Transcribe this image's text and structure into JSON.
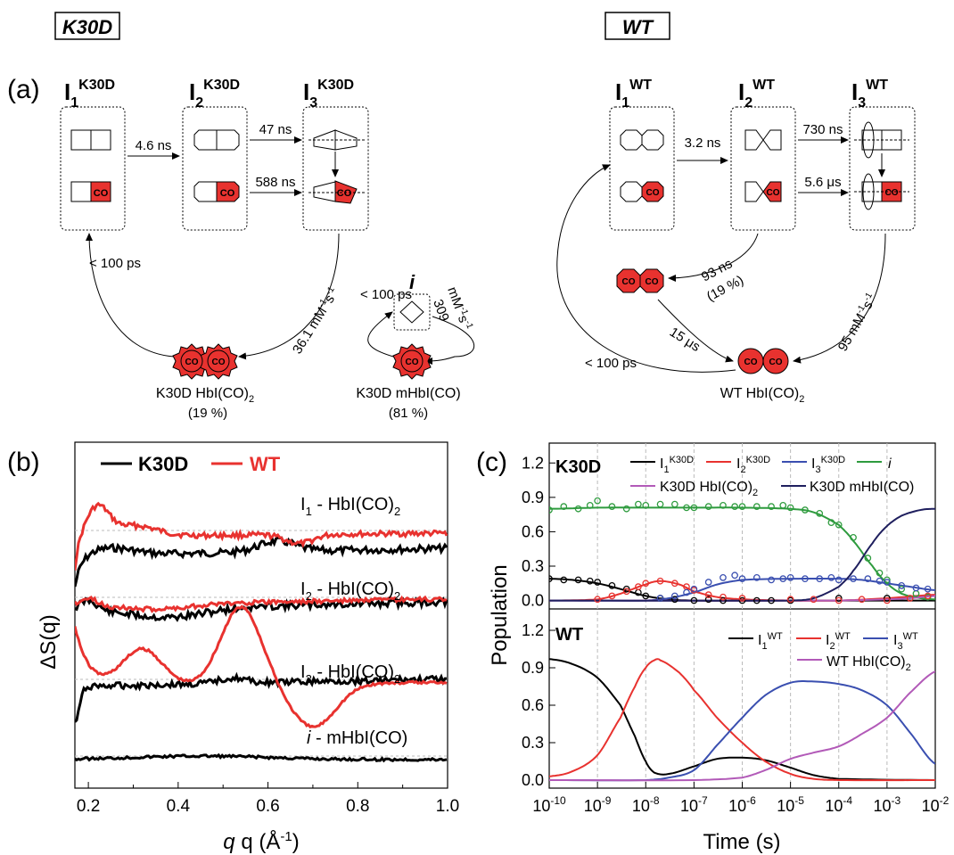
{
  "panel_a": {
    "label": "(a)",
    "k30d": {
      "title": "K30D",
      "states": [
        {
          "base": "I",
          "sub": "1",
          "sup": "K30D"
        },
        {
          "base": "I",
          "sub": "2",
          "sup": "K30D"
        },
        {
          "base": "I",
          "sub": "3",
          "sup": "K30D"
        }
      ],
      "i_label": "i",
      "rates": {
        "r12": "4.6 ns",
        "r23_top": "47 ns",
        "r23_bottom": "588 ns",
        "back": "< 100 ps",
        "bimol": "36.1 mM",
        "bimol_sup": "-1",
        "bimol_s": "s",
        "i_back": "< 100 ps",
        "i_bimol_num": "309",
        "i_bimol_unit": "mM",
        "i_bimol_sup": "-1",
        "i_bimol_s": "s"
      },
      "co_text": "CO",
      "product_dimer": {
        "name": "K30D HbI(CO)",
        "sub": "2",
        "pct": "(19 %)"
      },
      "product_mono": {
        "name": "K30D mHbI(CO)",
        "pct": "(81 %)"
      }
    },
    "wt": {
      "title": "WT",
      "states": [
        {
          "base": "I",
          "sub": "1",
          "sup": "WT"
        },
        {
          "base": "I",
          "sub": "2",
          "sup": "WT"
        },
        {
          "base": "I",
          "sub": "3",
          "sup": "WT"
        }
      ],
      "rates": {
        "r12": "3.2 ns",
        "r23_top": "730 ns",
        "r23_bottom": "5.6 μs",
        "r_dissoc": "93 ns",
        "r_dissoc_pct": "(19 %)",
        "r_rebind": "15 μs",
        "back": "< 100 ps",
        "bimol": "95 mM",
        "bimol_sup": "-1",
        "bimol_s": "s"
      },
      "co_text": "CO",
      "product": {
        "name": "WT HbI(CO)",
        "sub": "2"
      }
    }
  },
  "panel_b": {
    "label": "(b)",
    "legend": [
      "K30D",
      "WT"
    ],
    "ylabel": "ΔS(q)",
    "xlabel": "q (Å",
    "xlabel_sup": "-1",
    "xlabel_end": ")",
    "xticks": [
      "0.2",
      "0.4",
      "0.6",
      "0.8",
      "1.0"
    ],
    "curve_labels": [
      {
        "pre": "I",
        "sub": "1",
        "post": " - HbI(CO)",
        "sub2": "2"
      },
      {
        "pre": "I",
        "sub": "2",
        "post": " - HbI(CO)",
        "sub2": "2"
      },
      {
        "pre": "I",
        "sub": "3",
        "post": " - HbI(CO)",
        "sub2": "2"
      },
      {
        "pre": "i",
        "sub": "",
        "post": " - mHbI(CO)",
        "sub2": ""
      }
    ]
  },
  "panel_c": {
    "label": "(c)",
    "ylabel": "Population",
    "xlabel": "Time (s)",
    "yticks": [
      "0.0",
      "0.3",
      "0.6",
      "0.9",
      "1.2"
    ],
    "xticks_exp": [
      "-10",
      "-9",
      "-8",
      "-7",
      "-6",
      "-5",
      "-4",
      "-3",
      "-2"
    ],
    "xtick_base": "10",
    "top_title": "K30D",
    "bottom_title": "WT",
    "top_legend": [
      {
        "base": "I",
        "sub": "1",
        "sup": "K30D",
        "color": "#000000"
      },
      {
        "base": "I",
        "sub": "2",
        "sup": "K30D",
        "color": "#e8322f"
      },
      {
        "base": "I",
        "sub": "3",
        "sup": "K30D",
        "color": "#3a4fb0"
      },
      {
        "base": "i",
        "sub": "",
        "sup": "",
        "color": "#2e9b3e"
      },
      {
        "base": "K30D HbI(CO)",
        "sub": "2",
        "sup": "",
        "color": "#b25ab8"
      },
      {
        "base": "K30D mHbI(CO)",
        "sub": "",
        "sup": "",
        "color": "#1f1f5e"
      }
    ],
    "bottom_legend": [
      {
        "base": "I",
        "sub": "1",
        "sup": "WT",
        "color": "#000000"
      },
      {
        "base": "I",
        "sub": "2",
        "sup": "WT",
        "color": "#e8322f"
      },
      {
        "base": "I",
        "sub": "3",
        "sup": "WT",
        "color": "#3a4fb0"
      },
      {
        "base": "WT HbI(CO)",
        "sub": "2",
        "sup": "",
        "color": "#b25ab8"
      }
    ]
  },
  "chart_data": [
    {
      "type": "line",
      "panel": "b",
      "xlabel": "q (Å-1)",
      "ylabel": "ΔS(q)",
      "xlim": [
        0.17,
        1.0
      ],
      "series": [
        {
          "name": "K30D",
          "color": "#000000"
        },
        {
          "name": "WT",
          "color": "#e8322f"
        }
      ]
    },
    {
      "type": "line",
      "panel": "c-top",
      "title": "K30D",
      "xscale": "log",
      "xlim": [
        1e-10,
        0.01
      ],
      "ylim": [
        -0.05,
        1.35
      ],
      "series": [
        {
          "name": "I1 K30D",
          "color": "#000000",
          "x": [
            1e-10,
            3e-10,
            1e-09,
            3e-09,
            1e-08,
            3e-08,
            1e-07,
            1e-06,
            1e-05,
            0.0001,
            0.001,
            0.01
          ],
          "y": [
            0.19,
            0.18,
            0.15,
            0.1,
            0.04,
            0.01,
            0,
            0,
            0,
            0,
            0,
            0
          ]
        },
        {
          "name": "I2 K30D",
          "color": "#e8322f",
          "x": [
            1e-10,
            1e-09,
            3e-09,
            1e-08,
            2e-08,
            5e-08,
            1e-07,
            3e-07,
            1e-06,
            1e-05,
            0.0001,
            0.001,
            0.01
          ],
          "y": [
            0.0,
            0.01,
            0.06,
            0.14,
            0.17,
            0.14,
            0.08,
            0.03,
            0.01,
            0,
            0,
            0.02,
            0.05
          ]
        },
        {
          "name": "I3 K30D",
          "color": "#3a4fb0",
          "x": [
            1e-10,
            1e-08,
            3e-08,
            1e-07,
            3e-07,
            1e-06,
            1e-05,
            0.0001,
            0.0003,
            0.001,
            0.003,
            0.01
          ],
          "y": [
            0,
            0,
            0.02,
            0.07,
            0.14,
            0.18,
            0.19,
            0.19,
            0.18,
            0.15,
            0.12,
            0.09
          ]
        },
        {
          "name": "i",
          "color": "#2e9b3e",
          "x": [
            1e-10,
            1e-09,
            1e-08,
            1e-07,
            1e-06,
            1e-05,
            3e-05,
            0.0001,
            0.0002,
            0.0005,
            0.001,
            0.002,
            0.005,
            0.01
          ],
          "y": [
            0.8,
            0.81,
            0.81,
            0.81,
            0.81,
            0.8,
            0.77,
            0.66,
            0.52,
            0.3,
            0.15,
            0.06,
            0.02,
            0.01
          ]
        },
        {
          "name": "K30D HbI(CO)2",
          "color": "#b25ab8",
          "x": [
            1e-10,
            0.0001,
            0.001,
            0.003,
            0.01
          ],
          "y": [
            0,
            0,
            0.01,
            0.02,
            0.04
          ]
        },
        {
          "name": "K30D mHbI(CO)",
          "color": "#1f1f5e",
          "x": [
            1e-10,
            1e-05,
            3e-05,
            0.0001,
            0.0002,
            0.0005,
            0.001,
            0.002,
            0.005,
            0.01
          ],
          "y": [
            0,
            0,
            0.02,
            0.12,
            0.26,
            0.5,
            0.65,
            0.74,
            0.79,
            0.8
          ]
        }
      ],
      "markers": [
        {
          "series": "i",
          "color": "#2e9b3e",
          "x": [
            1e-10,
            2e-10,
            4e-10,
            7e-10,
            1e-09,
            2e-09,
            4e-09,
            7e-09,
            1e-08,
            2e-08,
            4e-08,
            7e-08,
            1e-07,
            2e-07,
            4e-07,
            7e-07,
            1e-06,
            2e-06,
            4e-06,
            7e-06,
            1e-05,
            2e-05,
            4e-05,
            7e-05,
            0.0001,
            0.0002,
            0.0004,
            0.0007,
            0.001,
            0.002,
            0.004,
            0.007
          ],
          "y": [
            0.79,
            0.82,
            0.8,
            0.83,
            0.87,
            0.82,
            0.8,
            0.84,
            0.83,
            0.84,
            0.84,
            0.81,
            0.81,
            0.82,
            0.83,
            0.82,
            0.82,
            0.82,
            0.82,
            0.83,
            0.81,
            0.79,
            0.76,
            0.68,
            0.66,
            0.55,
            0.37,
            0.24,
            0.18,
            0.1,
            0.06,
            0.03
          ]
        },
        {
          "series": "I1 K30D",
          "color": "#000000",
          "x": [
            1e-10,
            2e-10,
            4e-10,
            7e-10,
            1e-09,
            2e-09,
            4e-09,
            7e-09,
            1e-08,
            2e-08,
            4e-08,
            1e-07,
            2e-07,
            4e-07,
            1e-06,
            2e-06,
            4e-06,
            1e-05,
            0.0001,
            0.001
          ],
          "y": [
            0.19,
            0.18,
            0.18,
            0.17,
            0.16,
            0.13,
            0.1,
            0.07,
            0.04,
            0.02,
            0.01,
            0.0,
            0.01,
            0.0,
            0.0,
            0.0,
            0.0,
            0.0,
            0.02,
            0.02
          ]
        },
        {
          "series": "I2 K30D",
          "color": "#e8322f",
          "x": [
            1e-09,
            2e-09,
            4e-09,
            7e-09,
            1e-08,
            2e-08,
            4e-08,
            7e-08,
            1e-07,
            2e-07,
            4e-07,
            1e-06,
            1e-05,
            3e-05,
            0.0001,
            0.0003,
            0.001,
            0.003,
            0.007
          ],
          "y": [
            0.01,
            0.04,
            0.08,
            0.12,
            0.15,
            0.17,
            0.15,
            0.12,
            0.09,
            0.05,
            0.03,
            0.02,
            0.01,
            0.01,
            0.0,
            0.01,
            0.0,
            0.02,
            0.04
          ]
        },
        {
          "series": "I3 K30D",
          "color": "#3a4fb0",
          "x": [
            2e-08,
            4e-08,
            7e-08,
            1e-07,
            2e-07,
            4e-07,
            7e-07,
            1e-06,
            2e-06,
            4e-06,
            7e-06,
            1e-05,
            2e-05,
            4e-05,
            7e-05,
            0.0001,
            0.0002,
            0.0004,
            0.0007,
            0.001,
            0.002,
            0.004,
            0.007
          ],
          "y": [
            0.02,
            0.04,
            0.07,
            0.1,
            0.16,
            0.2,
            0.22,
            0.19,
            0.2,
            0.18,
            0.19,
            0.2,
            0.19,
            0.19,
            0.2,
            0.18,
            0.19,
            0.19,
            0.17,
            0.16,
            0.13,
            0.11,
            0.1
          ]
        }
      ]
    },
    {
      "type": "line",
      "panel": "c-bottom",
      "title": "WT",
      "xscale": "log",
      "xlim": [
        1e-10,
        0.01
      ],
      "ylim": [
        -0.05,
        1.35
      ],
      "series": [
        {
          "name": "I1 WT",
          "color": "#000000",
          "x": [
            1e-10,
            3e-10,
            1e-09,
            3e-09,
            6e-09,
            1e-08,
            1.5e-08,
            3e-08,
            1e-07,
            3e-07,
            1e-06,
            3e-06,
            1e-05,
            3e-05,
            0.0001,
            0.01
          ],
          "y": [
            0.97,
            0.93,
            0.82,
            0.6,
            0.35,
            0.15,
            0.06,
            0.05,
            0.11,
            0.17,
            0.18,
            0.16,
            0.1,
            0.04,
            0.01,
            0
          ]
        },
        {
          "name": "I2 WT",
          "color": "#e8322f",
          "x": [
            1e-10,
            3e-10,
            1e-09,
            3e-09,
            6e-09,
            1e-08,
            1.5e-08,
            2e-08,
            5e-08,
            1e-07,
            3e-07,
            1e-06,
            3e-06,
            1e-05,
            3e-05,
            0.0001,
            0.01
          ],
          "y": [
            0.03,
            0.07,
            0.2,
            0.5,
            0.75,
            0.9,
            0.96,
            0.96,
            0.86,
            0.72,
            0.5,
            0.3,
            0.15,
            0.05,
            0.01,
            0,
            0
          ]
        },
        {
          "name": "I3 WT",
          "color": "#3a4fb0",
          "x": [
            1e-10,
            1e-08,
            3e-08,
            1e-07,
            3e-07,
            1e-06,
            3e-06,
            1e-05,
            3e-05,
            0.0001,
            0.0003,
            0.001,
            0.003,
            0.01
          ],
          "y": [
            0,
            0,
            0.02,
            0.08,
            0.28,
            0.5,
            0.68,
            0.78,
            0.79,
            0.77,
            0.72,
            0.6,
            0.38,
            0.13
          ]
        },
        {
          "name": "WT HbI(CO)2",
          "color": "#b25ab8",
          "x": [
            1e-10,
            1e-07,
            1e-06,
            3e-06,
            1e-05,
            3e-05,
            0.0001,
            0.0003,
            0.001,
            0.003,
            0.01
          ],
          "y": [
            0,
            0,
            0.02,
            0.08,
            0.17,
            0.22,
            0.27,
            0.37,
            0.5,
            0.7,
            0.87
          ]
        }
      ]
    }
  ]
}
